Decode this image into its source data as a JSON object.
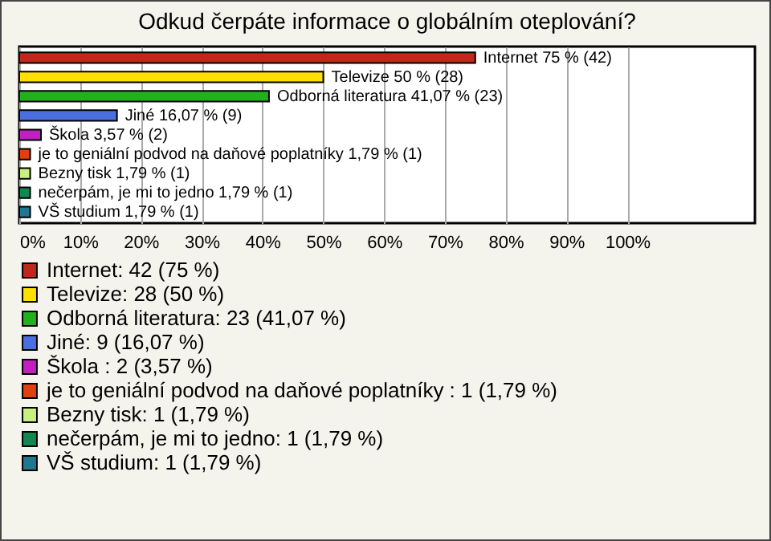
{
  "chart_data": {
    "type": "bar",
    "title": "Odkud čerpáte informace o globálním oteplování?",
    "orientation": "horizontal",
    "stacked": true,
    "categories": [
      null,
      null,
      null,
      null,
      null,
      null,
      null,
      null,
      null
    ],
    "series": [
      {
        "name": "Internet: 42 (75 %)",
        "color": "#c0281c",
        "values": [
          75,
          null,
          null,
          null,
          null,
          null,
          null,
          null,
          null
        ],
        "value_labels": [
          "Internet 75 % (42)",
          null,
          null,
          null,
          null,
          null,
          null,
          null,
          null
        ]
      },
      {
        "name": "Televize: 28 (50 %)",
        "color": "#ffe000",
        "values": [
          null,
          50,
          null,
          null,
          null,
          null,
          null,
          null,
          null
        ],
        "value_labels": [
          null,
          "Televize 50 % (28)",
          null,
          null,
          null,
          null,
          null,
          null,
          null
        ]
      },
      {
        "name": "Odborná literatura: 23 (41,07 %)",
        "color": "#22b01e",
        "values": [
          null,
          null,
          41.07,
          null,
          null,
          null,
          null,
          null,
          null
        ],
        "value_labels": [
          null,
          null,
          "Odborná literatura 41,07 % (23)",
          null,
          null,
          null,
          null,
          null,
          null
        ]
      },
      {
        "name": "Jiné: 9 (16,07 %)",
        "color": "#4a70e0",
        "values": [
          null,
          null,
          null,
          16.07,
          null,
          null,
          null,
          null,
          null
        ],
        "value_labels": [
          null,
          null,
          null,
          "Jiné 16,07 % (9)",
          null,
          null,
          null,
          null,
          null
        ]
      },
      {
        "name": "Škola : 2 (3,57 %)",
        "color": "#c020c0",
        "values": [
          null,
          null,
          null,
          null,
          3.57,
          null,
          null,
          null,
          null
        ],
        "value_labels": [
          null,
          null,
          null,
          null,
          "Škola  3,57 % (2)",
          null,
          null,
          null,
          null
        ]
      },
      {
        "name": "je to geniální podvod na daňové poplatníky : 1 (1,79 %)",
        "color": "#e04010",
        "values": [
          null,
          null,
          null,
          null,
          null,
          1.79,
          null,
          null,
          null
        ],
        "value_labels": [
          null,
          null,
          null,
          null,
          null,
          "je to geniální podvod na daňové poplatníky  1,79 % (1)",
          null,
          null,
          null
        ]
      },
      {
        "name": "Bezny tisk: 1 (1,79 %)",
        "color": "#c8f080",
        "values": [
          null,
          null,
          null,
          null,
          null,
          null,
          1.79,
          null,
          null
        ],
        "value_labels": [
          null,
          null,
          null,
          null,
          null,
          null,
          "Bezny tisk 1,79 % (1)",
          null,
          null
        ]
      },
      {
        "name": "nečerpám, je mi to jedno: 1 (1,79 %)",
        "color": "#108850",
        "values": [
          null,
          null,
          null,
          null,
          null,
          null,
          null,
          1.79,
          null
        ],
        "value_labels": [
          null,
          null,
          null,
          null,
          null,
          null,
          null,
          "nečerpám, je mi to jedno 1,79 % (1)",
          null
        ]
      },
      {
        "name": "VŠ studium: 1 (1,79 %)",
        "color": "#207890",
        "values": [
          null,
          null,
          null,
          null,
          null,
          null,
          null,
          null,
          1.79
        ],
        "value_labels": [
          null,
          null,
          null,
          null,
          null,
          null,
          null,
          null,
          "VŠ studium 1,79 % (1)"
        ]
      }
    ],
    "xlim": [
      0,
      121
    ],
    "xticks": [
      {
        "value": 0,
        "label": "0%"
      },
      {
        "value": 10,
        "label": "10%"
      },
      {
        "value": 20,
        "label": "20%"
      },
      {
        "value": 30,
        "label": "30%"
      },
      {
        "value": 40,
        "label": "40%"
      },
      {
        "value": 50,
        "label": "50%"
      },
      {
        "value": 60,
        "label": "60%"
      },
      {
        "value": 70,
        "label": "70%"
      },
      {
        "value": 80,
        "label": "80%"
      },
      {
        "value": 90,
        "label": "90%"
      },
      {
        "value": 100,
        "label": "100%"
      }
    ],
    "grid": "x",
    "legend": "bottom"
  }
}
